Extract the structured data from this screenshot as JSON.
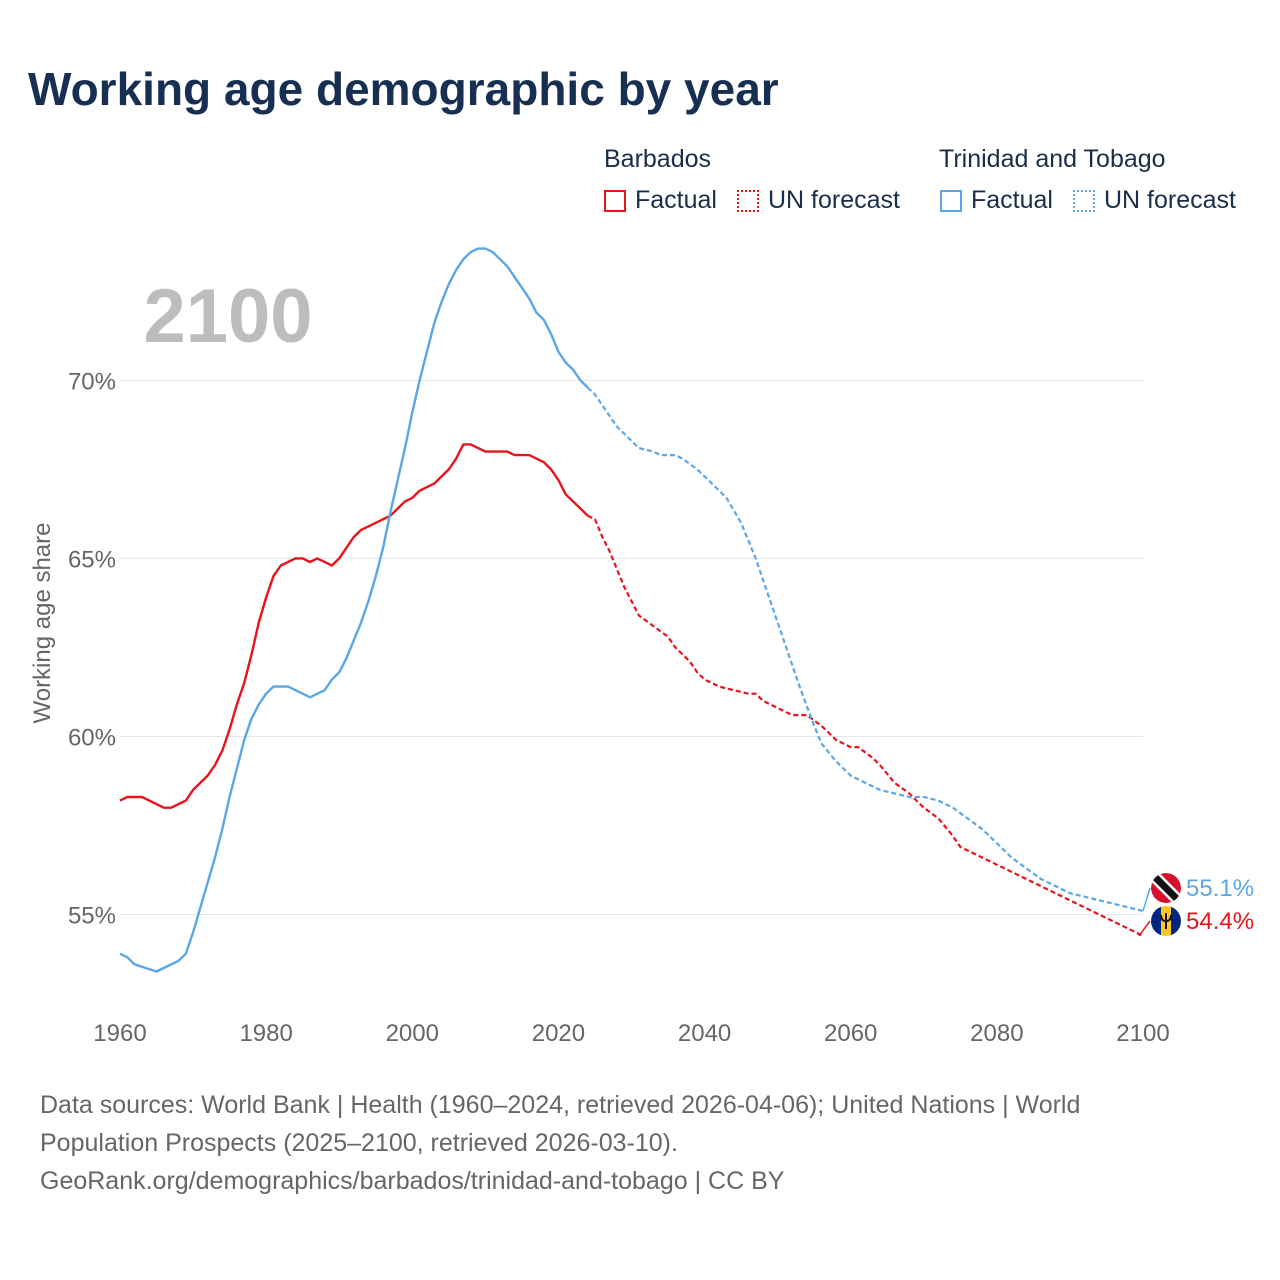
{
  "title": "Working age demographic by year",
  "legend": {
    "groups": [
      {
        "name": "Barbados",
        "factual_label": "Factual",
        "forecast_label": "UN forecast",
        "color": "#e8131b"
      },
      {
        "name": "Trinidad and Tobago",
        "factual_label": "Factual",
        "forecast_label": "UN forecast",
        "color": "#5aa6e8"
      }
    ]
  },
  "chart_data": {
    "type": "line",
    "title": "Working age demographic by year",
    "year_label": "2100",
    "xlabel": "",
    "ylabel": "Working age share",
    "xlim": [
      1960,
      2100
    ],
    "ylim": [
      52.6,
      73.8
    ],
    "x_ticks": [
      1960,
      1980,
      2000,
      2020,
      2040,
      2060,
      2080,
      2100
    ],
    "x_tick_labels": [
      "1960",
      "1980",
      "2000",
      "2020",
      "2040",
      "2060",
      "2080",
      "2100"
    ],
    "y_ticks": [
      55,
      60,
      65,
      70
    ],
    "y_tick_labels": [
      "55%",
      "60%",
      "65%",
      "70%"
    ],
    "grid": true,
    "factual_end_year": 2024,
    "series": [
      {
        "name": "Barbados",
        "color": "#e8131b",
        "end_label": "54.4%",
        "flag": "barbados-flag",
        "points": [
          [
            1960,
            58.2
          ],
          [
            1961,
            58.3
          ],
          [
            1963,
            58.3
          ],
          [
            1965,
            58.1
          ],
          [
            1966,
            58.0
          ],
          [
            1967,
            58.0
          ],
          [
            1969,
            58.2
          ],
          [
            1970,
            58.5
          ],
          [
            1972,
            58.9
          ],
          [
            1973,
            59.2
          ],
          [
            1974,
            59.6
          ],
          [
            1975,
            60.2
          ],
          [
            1976,
            60.9
          ],
          [
            1977,
            61.5
          ],
          [
            1978,
            62.3
          ],
          [
            1979,
            63.2
          ],
          [
            1980,
            63.9
          ],
          [
            1981,
            64.5
          ],
          [
            1982,
            64.8
          ],
          [
            1984,
            65.0
          ],
          [
            1985,
            65.0
          ],
          [
            1986,
            64.9
          ],
          [
            1987,
            65.0
          ],
          [
            1989,
            64.8
          ],
          [
            1990,
            65.0
          ],
          [
            1991,
            65.3
          ],
          [
            1992,
            65.6
          ],
          [
            1993,
            65.8
          ],
          [
            1995,
            66.0
          ],
          [
            1997,
            66.2
          ],
          [
            1999,
            66.6
          ],
          [
            2000,
            66.7
          ],
          [
            2001,
            66.9
          ],
          [
            2003,
            67.1
          ],
          [
            2005,
            67.5
          ],
          [
            2006,
            67.8
          ],
          [
            2007,
            68.2
          ],
          [
            2008,
            68.2
          ],
          [
            2010,
            68.0
          ],
          [
            2013,
            68.0
          ],
          [
            2014,
            67.9
          ],
          [
            2016,
            67.9
          ],
          [
            2018,
            67.7
          ],
          [
            2019,
            67.5
          ],
          [
            2020,
            67.2
          ],
          [
            2021,
            66.8
          ],
          [
            2022,
            66.6
          ],
          [
            2023,
            66.4
          ],
          [
            2024,
            66.2
          ],
          [
            2025,
            66.1
          ],
          [
            2026,
            65.6
          ],
          [
            2027,
            65.2
          ],
          [
            2028,
            64.7
          ],
          [
            2029,
            64.2
          ],
          [
            2030,
            63.8
          ],
          [
            2031,
            63.4
          ],
          [
            2033,
            63.1
          ],
          [
            2035,
            62.8
          ],
          [
            2036,
            62.5
          ],
          [
            2038,
            62.1
          ],
          [
            2039,
            61.8
          ],
          [
            2040,
            61.6
          ],
          [
            2042,
            61.4
          ],
          [
            2044,
            61.3
          ],
          [
            2046,
            61.2
          ],
          [
            2047,
            61.2
          ],
          [
            2048,
            61.0
          ],
          [
            2050,
            60.8
          ],
          [
            2052,
            60.6
          ],
          [
            2054,
            60.6
          ],
          [
            2056,
            60.3
          ],
          [
            2058,
            59.9
          ],
          [
            2060,
            59.7
          ],
          [
            2061,
            59.7
          ],
          [
            2063,
            59.4
          ],
          [
            2064,
            59.2
          ],
          [
            2066,
            58.7
          ],
          [
            2068,
            58.4
          ],
          [
            2070,
            58.0
          ],
          [
            2072,
            57.7
          ],
          [
            2074,
            57.2
          ],
          [
            2075,
            56.9
          ],
          [
            2077,
            56.7
          ],
          [
            2080,
            56.4
          ],
          [
            2085,
            55.9
          ],
          [
            2090,
            55.4
          ],
          [
            2095,
            54.9
          ],
          [
            2099,
            54.5
          ],
          [
            2100,
            54.4
          ]
        ]
      },
      {
        "name": "Trinidad and Tobago",
        "color": "#5aa6e8",
        "end_label": "55.1%",
        "flag": "trinidad-and-tobago-flag",
        "points": [
          [
            1960,
            53.9
          ],
          [
            1961,
            53.8
          ],
          [
            1962,
            53.6
          ],
          [
            1965,
            53.4
          ],
          [
            1968,
            53.7
          ],
          [
            1969,
            53.9
          ],
          [
            1970,
            54.5
          ],
          [
            1971,
            55.2
          ],
          [
            1972,
            55.9
          ],
          [
            1973,
            56.6
          ],
          [
            1974,
            57.4
          ],
          [
            1975,
            58.3
          ],
          [
            1976,
            59.1
          ],
          [
            1977,
            59.9
          ],
          [
            1978,
            60.5
          ],
          [
            1979,
            60.9
          ],
          [
            1980,
            61.2
          ],
          [
            1981,
            61.4
          ],
          [
            1983,
            61.4
          ],
          [
            1985,
            61.2
          ],
          [
            1986,
            61.1
          ],
          [
            1988,
            61.3
          ],
          [
            1989,
            61.6
          ],
          [
            1990,
            61.8
          ],
          [
            1991,
            62.2
          ],
          [
            1992,
            62.7
          ],
          [
            1993,
            63.2
          ],
          [
            1994,
            63.8
          ],
          [
            1995,
            64.5
          ],
          [
            1996,
            65.3
          ],
          [
            1997,
            66.3
          ],
          [
            1998,
            67.2
          ],
          [
            1999,
            68.1
          ],
          [
            2000,
            69.1
          ],
          [
            2001,
            70.0
          ],
          [
            2002,
            70.8
          ],
          [
            2003,
            71.6
          ],
          [
            2004,
            72.2
          ],
          [
            2005,
            72.7
          ],
          [
            2006,
            73.1
          ],
          [
            2007,
            73.4
          ],
          [
            2008,
            73.6
          ],
          [
            2009,
            73.7
          ],
          [
            2010,
            73.7
          ],
          [
            2011,
            73.6
          ],
          [
            2012,
            73.4
          ],
          [
            2013,
            73.2
          ],
          [
            2014,
            72.9
          ],
          [
            2015,
            72.6
          ],
          [
            2016,
            72.3
          ],
          [
            2017,
            71.9
          ],
          [
            2018,
            71.7
          ],
          [
            2019,
            71.3
          ],
          [
            2020,
            70.8
          ],
          [
            2021,
            70.5
          ],
          [
            2022,
            70.3
          ],
          [
            2023,
            70.0
          ],
          [
            2024,
            69.8
          ],
          [
            2025,
            69.6
          ],
          [
            2026,
            69.3
          ],
          [
            2027,
            69.0
          ],
          [
            2028,
            68.7
          ],
          [
            2030,
            68.3
          ],
          [
            2031,
            68.1
          ],
          [
            2033,
            68.0
          ],
          [
            2034,
            67.9
          ],
          [
            2036,
            67.9
          ],
          [
            2037,
            67.8
          ],
          [
            2039,
            67.5
          ],
          [
            2041,
            67.1
          ],
          [
            2043,
            66.7
          ],
          [
            2045,
            66.0
          ],
          [
            2047,
            65.0
          ],
          [
            2049,
            63.8
          ],
          [
            2051,
            62.6
          ],
          [
            2053,
            61.4
          ],
          [
            2055,
            60.3
          ],
          [
            2056,
            59.8
          ],
          [
            2058,
            59.3
          ],
          [
            2060,
            58.9
          ],
          [
            2062,
            58.7
          ],
          [
            2064,
            58.5
          ],
          [
            2066,
            58.4
          ],
          [
            2068,
            58.3
          ],
          [
            2070,
            58.3
          ],
          [
            2072,
            58.2
          ],
          [
            2074,
            58.0
          ],
          [
            2076,
            57.7
          ],
          [
            2078,
            57.4
          ],
          [
            2080,
            57.0
          ],
          [
            2082,
            56.6
          ],
          [
            2084,
            56.3
          ],
          [
            2086,
            56.0
          ],
          [
            2088,
            55.8
          ],
          [
            2090,
            55.6
          ],
          [
            2092,
            55.5
          ],
          [
            2094,
            55.4
          ],
          [
            2096,
            55.3
          ],
          [
            2098,
            55.2
          ],
          [
            2100,
            55.1
          ]
        ]
      }
    ]
  },
  "source": {
    "line1": "Data sources: World Bank | Health (1960–2024, retrieved 2026-04-06); United Nations | World",
    "line2": "Population Prospects (2025–2100, retrieved 2026-03-10).",
    "line3": "GeoRank.org/demographics/barbados/trinidad-and-tobago | CC BY"
  }
}
